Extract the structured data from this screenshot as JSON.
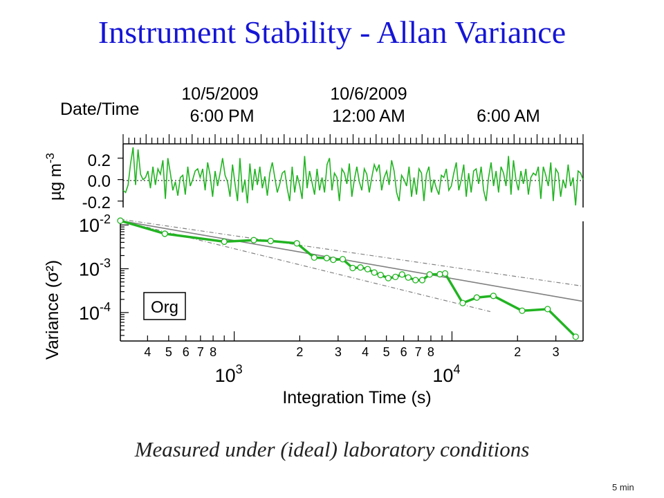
{
  "title": "Instrument Stability - Allan Variance",
  "caption": "Measured under (ideal) laboratory conditions",
  "footnote": "5 min",
  "chart_data": [
    {
      "type": "line",
      "panel": "time-series",
      "xlabel": "Date/Time",
      "ylabel": "µg m⁻³",
      "ylabel_parts": {
        "unit": "µg m",
        "exponent": "-3"
      },
      "x_ticks": [
        {
          "date": "10/5/2009",
          "time": "6:00 PM"
        },
        {
          "date": "10/6/2009",
          "time": "12:00 AM"
        },
        {
          "date": "",
          "time": "6:00 AM"
        }
      ],
      "y_ticks": [
        "0.2",
        "0.0",
        "-0.2"
      ],
      "ylim": [
        -0.26,
        0.32
      ],
      "zero_line": "dotted",
      "series": [
        {
          "color": "#22b422",
          "values": [
            -0.1,
            -0.12,
            -0.05,
            0.15,
            0.3,
            -0.05,
            0.28,
            0.05,
            0.0,
            0.02,
            0.08,
            -0.08,
            0.12,
            -0.05,
            0.1,
            0.05,
            0.18,
            -0.18,
            0.2,
            0.06,
            -0.1,
            -0.02,
            -0.15,
            0.02,
            0.04,
            -0.14,
            0.12,
            -0.06,
            0.0,
            0.08,
            0.1,
            0.02,
            0.1,
            -0.1,
            0.16,
            0.04,
            -0.16,
            0.08,
            -0.06,
            0.06,
            0.2,
            0.04,
            -0.02,
            -0.16,
            0.14,
            -0.04,
            -0.2,
            0.2,
            -0.12,
            0.0,
            -0.22,
            0.15,
            -0.1,
            0.1,
            -0.05,
            0.12,
            -0.08,
            0.03,
            -0.15,
            0.06,
            0.16,
            0.02,
            -0.12,
            -0.04,
            0.06,
            0.08,
            -0.08,
            -0.2,
            0.12,
            -0.12,
            0.04,
            -0.05,
            -0.18,
            0.22,
            -0.08,
            0.08,
            -0.03,
            -0.14,
            0.1,
            -0.1,
            0.02,
            -0.12,
            0.14,
            0.2,
            -0.1,
            0.06,
            0.02,
            -0.2,
            0.1,
            0.06,
            -0.04,
            0.15,
            -0.16,
            0.0,
            0.12,
            -0.02,
            -0.1,
            0.1,
            0.05,
            -0.12,
            0.02,
            0.14,
            0.08,
            0.14,
            -0.1,
            0.02,
            0.08,
            -0.05,
            0.18,
            0.08,
            -0.12,
            -0.2,
            0.04,
            0.0,
            -0.06,
            0.12,
            -0.16,
            0.02,
            -0.14,
            0.1,
            0.06,
            -0.2,
            0.05,
            0.12,
            -0.12,
            0.0,
            -0.08,
            -0.14,
            0.04,
            0.02,
            0.1,
            -0.1,
            -0.06,
            0.06,
            0.16,
            -0.1,
            0.0,
            0.14,
            -0.16,
            0.06,
            -0.12,
            0.08,
            0.1,
            -0.04,
            0.12,
            -0.1,
            -0.2,
            0.02,
            0.16,
            -0.06,
            0.08,
            -0.12,
            0.12,
            0.06,
            -0.06,
            0.22,
            -0.14,
            0.18,
            0.0,
            -0.1,
            0.08,
            -0.04,
            0.1,
            -0.14,
            0.02,
            0.06,
            0.04,
            0.12,
            -0.18,
            0.12,
            0.04,
            -0.06,
            0.16,
            -0.2,
            0.1,
            0.06,
            -0.16,
            0.0,
            -0.08,
            0.14,
            -0.06,
            0.02,
            -0.24,
            0.08,
            0.06,
            0.0
          ]
        }
      ]
    },
    {
      "type": "line",
      "panel": "allan-variance",
      "xlabel": "Integration Time (s)",
      "ylabel": "Variance (σ²)",
      "x_scale": "log",
      "y_scale": "log",
      "xlim": [
        300,
        40000
      ],
      "ylim": [
        2.5e-05,
        0.013
      ],
      "x_major_labels": [
        {
          "value": 1000,
          "base": "10",
          "exp": "3"
        },
        {
          "value": 10000,
          "base": "10",
          "exp": "4"
        }
      ],
      "x_minor_labels": [
        {
          "value": 400,
          "label": "4"
        },
        {
          "value": 500,
          "label": "5"
        },
        {
          "value": 600,
          "label": "6"
        },
        {
          "value": 700,
          "label": "7"
        },
        {
          "value": 800,
          "label": "8"
        },
        {
          "value": 2000,
          "label": "2"
        },
        {
          "value": 3000,
          "label": "3"
        },
        {
          "value": 4000,
          "label": "4"
        },
        {
          "value": 5000,
          "label": "5"
        },
        {
          "value": 6000,
          "label": "6"
        },
        {
          "value": 7000,
          "label": "7"
        },
        {
          "value": 8000,
          "label": "8"
        },
        {
          "value": 20000,
          "label": "2"
        },
        {
          "value": 30000,
          "label": "3"
        }
      ],
      "y_major_labels": [
        {
          "value": 0.01,
          "base": "10",
          "exp": "-2"
        },
        {
          "value": 0.001,
          "base": "10",
          "exp": "-3"
        },
        {
          "value": 0.0001,
          "base": "10",
          "exp": "-4"
        }
      ],
      "annotation": "Org",
      "series": [
        {
          "color": "#22b422",
          "marker": "circle",
          "x": [
            300,
            480,
            900,
            1230,
            1470,
            1940,
            2330,
            2660,
            2850,
            3150,
            3500,
            3800,
            4100,
            4400,
            4700,
            5100,
            5500,
            5900,
            6300,
            6800,
            7300,
            7900,
            8800,
            9300,
            11200,
            13000,
            15500,
            21000,
            27500,
            37000
          ],
          "y": [
            0.0125,
            0.0063,
            0.00415,
            0.0045,
            0.0043,
            0.0038,
            0.0018,
            0.00175,
            0.0016,
            0.00165,
            0.00104,
            0.00107,
            0.00098,
            0.00082,
            0.00072,
            0.00061,
            0.00065,
            0.00074,
            0.00063,
            0.00055,
            0.00055,
            0.00074,
            0.00075,
            0.00078,
            0.000165,
            0.00022,
            0.00024,
            0.00011,
            0.00012,
            2.8e-05
          ]
        },
        {
          "color": "#808080",
          "style": "solid",
          "x": [
            300,
            40000
          ],
          "y": [
            0.0125,
            0.00018
          ]
        },
        {
          "color": "#808080",
          "style": "dash-dot",
          "x": [
            300,
            40000
          ],
          "y": [
            0.0135,
            0.0004
          ]
        },
        {
          "color": "#808080",
          "style": "dash-dot",
          "x": [
            300,
            15000
          ],
          "y": [
            0.0125,
            0.000105
          ]
        }
      ]
    }
  ]
}
